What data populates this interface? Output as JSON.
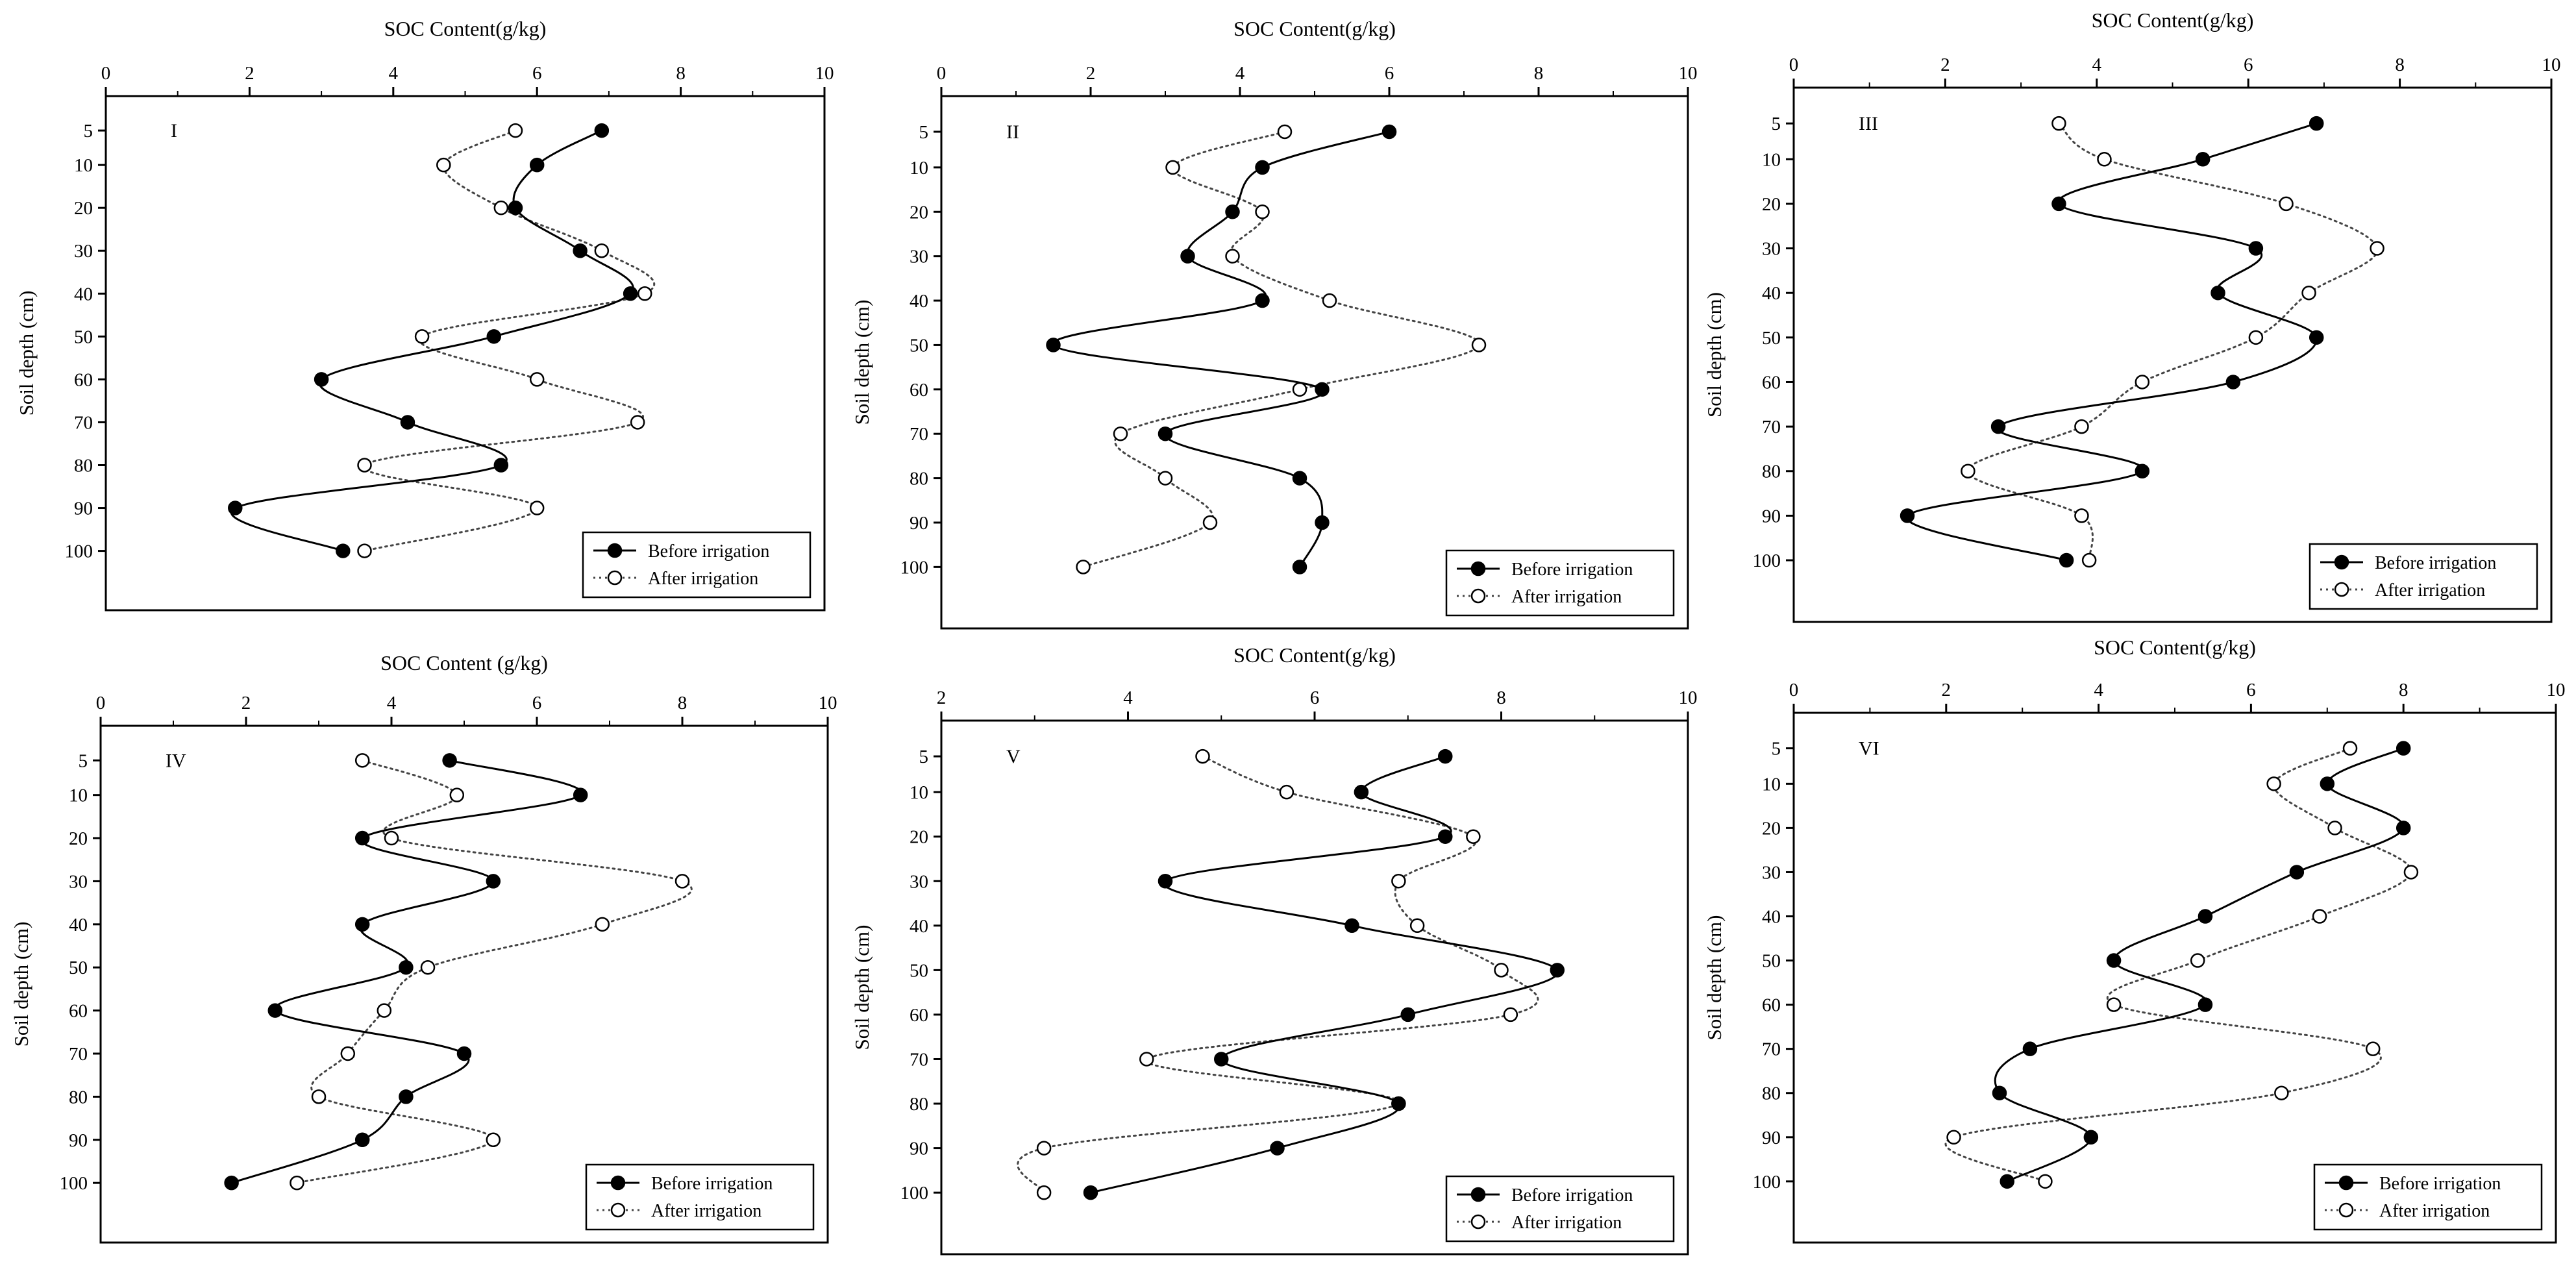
{
  "chart_data": [
    {
      "type": "line",
      "panel_label": "I",
      "title": "SOC Content(g/kg)",
      "xlabel": "SOC Content(g/kg)",
      "ylabel": "Soil depth (cm)",
      "xlim": [
        0,
        10
      ],
      "xticks": [
        "0",
        "2",
        "4",
        "6",
        "8",
        "10"
      ],
      "ylim": [
        0,
        105
      ],
      "yticks": [
        "5",
        "10",
        "20",
        "30",
        "40",
        "50",
        "60",
        "70",
        "80",
        "90",
        "100"
      ],
      "legend_position": "bottom-right",
      "series": [
        {
          "name": "Before irrigation",
          "style": "solid-filled",
          "x": [
            6.9,
            6.0,
            5.7,
            6.6,
            7.3,
            5.4,
            3.0,
            4.2,
            5.5,
            1.8,
            3.3
          ]
        },
        {
          "name": "After irrigation",
          "style": "dotted-open",
          "x": [
            5.7,
            4.7,
            5.5,
            6.9,
            7.5,
            4.4,
            6.0,
            7.4,
            3.6,
            6.0,
            3.6
          ]
        }
      ]
    },
    {
      "type": "line",
      "panel_label": "II",
      "title": "SOC Content(g/kg)",
      "xlabel": "SOC Content(g/kg)",
      "ylabel": "Soil depth (cm)",
      "xlim": [
        0,
        10
      ],
      "xticks": [
        "0",
        "2",
        "4",
        "6",
        "8",
        "10"
      ],
      "ylim": [
        0,
        105
      ],
      "yticks": [
        "5",
        "10",
        "20",
        "30",
        "40",
        "50",
        "60",
        "70",
        "80",
        "90",
        "100"
      ],
      "legend_position": "bottom-right",
      "series": [
        {
          "name": "Before irrigation",
          "style": "solid-filled",
          "x": [
            6.0,
            4.3,
            3.9,
            3.3,
            4.3,
            1.5,
            5.1,
            3.0,
            4.8,
            5.1,
            4.8
          ]
        },
        {
          "name": "After irrigation",
          "style": "dotted-open",
          "x": [
            4.6,
            3.1,
            4.3,
            3.9,
            5.2,
            7.2,
            4.8,
            2.4,
            3.0,
            3.6,
            1.9
          ]
        }
      ]
    },
    {
      "type": "line",
      "panel_label": "III",
      "title": "SOC Content(g/kg)",
      "xlabel": "SOC Content(g/kg)",
      "ylabel": "Soil depth (cm)",
      "xlim": [
        0,
        10
      ],
      "xticks": [
        "0",
        "2",
        "4",
        "6",
        "8",
        "10"
      ],
      "ylim": [
        0,
        105
      ],
      "yticks": [
        "5",
        "10",
        "20",
        "30",
        "40",
        "50",
        "60",
        "70",
        "80",
        "90",
        "100"
      ],
      "legend_position": "bottom-right",
      "series": [
        {
          "name": "Before irrigation",
          "style": "solid-filled",
          "x": [
            6.9,
            5.4,
            3.5,
            6.1,
            5.6,
            6.9,
            5.8,
            2.7,
            4.6,
            1.5,
            3.6
          ]
        },
        {
          "name": "After irrigation",
          "style": "dotted-open",
          "x": [
            3.5,
            4.1,
            6.5,
            7.7,
            6.8,
            6.1,
            4.6,
            3.8,
            2.3,
            3.8,
            3.9
          ]
        }
      ]
    },
    {
      "type": "line",
      "panel_label": "IV",
      "title": "SOC Content (g/kg)",
      "xlabel": "SOC Content (g/kg)",
      "ylabel": "Soil depth (cm)",
      "xlim": [
        0,
        10
      ],
      "xticks": [
        "0",
        "2",
        "4",
        "6",
        "8",
        "10"
      ],
      "ylim": [
        0,
        105
      ],
      "yticks": [
        "5",
        "10",
        "20",
        "30",
        "40",
        "50",
        "60",
        "70",
        "80",
        "90",
        "100"
      ],
      "legend_position": "bottom-right",
      "series": [
        {
          "name": "Before irrigation",
          "style": "solid-filled",
          "x": [
            4.8,
            6.6,
            3.6,
            5.4,
            3.6,
            4.2,
            2.4,
            5.0,
            4.2,
            3.6,
            1.8
          ]
        },
        {
          "name": "After irrigation",
          "style": "dotted-open",
          "x": [
            3.6,
            4.9,
            4.0,
            8.0,
            6.9,
            4.5,
            3.9,
            3.4,
            3.0,
            5.4,
            2.7
          ]
        }
      ]
    },
    {
      "type": "line",
      "panel_label": "V",
      "title": "SOC Content(g/kg)",
      "xlabel": "SOC Content(g/kg)",
      "ylabel": "Soil depth (cm)",
      "xlim": [
        2,
        10
      ],
      "xticks": [
        "2",
        "4",
        "6",
        "8",
        "10"
      ],
      "ylim": [
        0,
        105
      ],
      "yticks": [
        "5",
        "10",
        "20",
        "30",
        "40",
        "50",
        "60",
        "70",
        "80",
        "90",
        "100"
      ],
      "legend_position": "bottom-right",
      "series": [
        {
          "name": "Before irrigation",
          "style": "solid-filled",
          "x": [
            7.4,
            6.5,
            7.4,
            4.4,
            6.4,
            8.6,
            7.0,
            5.0,
            6.9,
            5.6,
            3.6
          ]
        },
        {
          "name": "After irrigation",
          "style": "dotted-open",
          "x": [
            4.8,
            5.7,
            7.7,
            6.9,
            7.1,
            8.0,
            8.1,
            4.2,
            6.9,
            3.1,
            3.1
          ]
        }
      ]
    },
    {
      "type": "line",
      "panel_label": "VI",
      "title": "SOC Content(g/kg)",
      "xlabel": "SOC Content(g/kg)",
      "ylabel": "Soil depth (cm)",
      "xlim": [
        0,
        10
      ],
      "xticks": [
        "0",
        "2",
        "4",
        "6",
        "8",
        "10"
      ],
      "ylim": [
        0,
        105
      ],
      "yticks": [
        "5",
        "10",
        "20",
        "30",
        "40",
        "50",
        "60",
        "70",
        "80",
        "90",
        "100"
      ],
      "legend_position": "bottom-right",
      "series": [
        {
          "name": "Before irrigation",
          "style": "solid-filled",
          "x": [
            8.0,
            7.0,
            8.0,
            6.6,
            5.4,
            4.2,
            5.4,
            3.1,
            2.7,
            3.9,
            2.8
          ]
        },
        {
          "name": "After irrigation",
          "style": "dotted-open",
          "x": [
            7.3,
            6.3,
            7.1,
            8.1,
            6.9,
            5.3,
            4.2,
            7.6,
            6.4,
            2.1,
            3.3
          ]
        }
      ]
    }
  ]
}
